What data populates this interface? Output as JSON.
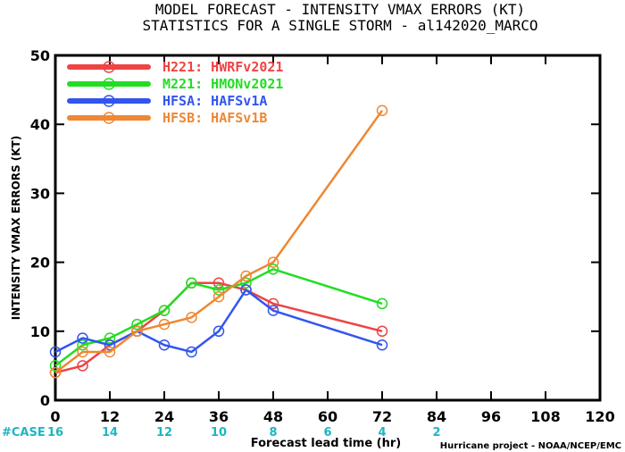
{
  "chart_data": {
    "type": "line",
    "title": "MODEL FORECAST - INTENSITY VMAX ERRORS (KT)",
    "subtitle": "STATISTICS FOR A SINGLE STORM - al142020_MARCO",
    "xlabel": "Forecast lead time (hr)",
    "ylabel": "INTENSITY VMAX ERRORS (KT)",
    "xlim": [
      0,
      120
    ],
    "ylim": [
      0,
      50
    ],
    "x_ticks": [
      0,
      12,
      24,
      36,
      48,
      60,
      72,
      84,
      96,
      108,
      120
    ],
    "y_ticks": [
      0,
      10,
      20,
      30,
      40,
      50
    ],
    "legend_position": "top-left",
    "series": [
      {
        "name": "H221: HWRFv2021",
        "color": "#ee4444",
        "x": [
          0,
          6,
          12,
          18,
          24,
          30,
          36,
          42,
          48,
          72
        ],
        "values": [
          4,
          5,
          8,
          10,
          13,
          17,
          17,
          16,
          14,
          10
        ]
      },
      {
        "name": "M221: HMONv2021",
        "color": "#22dd22",
        "x": [
          0,
          6,
          12,
          18,
          24,
          30,
          36,
          42,
          48,
          72
        ],
        "values": [
          5,
          8,
          9,
          11,
          13,
          17,
          16,
          17,
          19,
          14
        ]
      },
      {
        "name": "HFSA: HAFSv1A",
        "color": "#3355ee",
        "x": [
          0,
          6,
          12,
          18,
          24,
          30,
          36,
          42,
          48,
          72
        ],
        "values": [
          7,
          9,
          8,
          10,
          8,
          7,
          10,
          16,
          13,
          8
        ]
      },
      {
        "name": "HFSB: HAFSv1B",
        "color": "#ee8833",
        "x": [
          0,
          6,
          12,
          18,
          24,
          30,
          36,
          42,
          48,
          72
        ],
        "values": [
          4,
          7,
          7,
          10,
          11,
          12,
          15,
          18,
          20,
          42
        ]
      }
    ],
    "case_label": "#CASE",
    "case_counts": [
      {
        "x": 0,
        "count": "16"
      },
      {
        "x": 12,
        "count": "14"
      },
      {
        "x": 24,
        "count": "12"
      },
      {
        "x": 36,
        "count": "10"
      },
      {
        "x": 48,
        "count": "8"
      },
      {
        "x": 60,
        "count": "6"
      },
      {
        "x": 72,
        "count": "4"
      },
      {
        "x": 84,
        "count": "2"
      }
    ],
    "credit": "Hurricane project - NOAA/NCEP/EMC"
  }
}
